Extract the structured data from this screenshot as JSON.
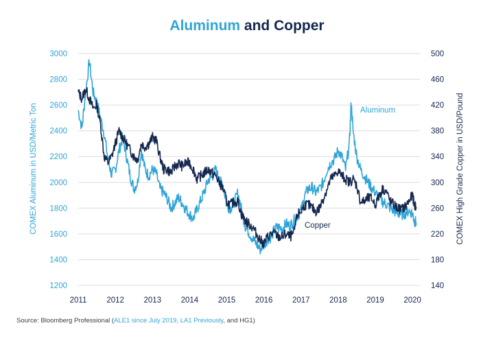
{
  "title": {
    "part1": "Aluminum",
    "part2": " and Copper"
  },
  "source": {
    "prefix": "Source: Bloomberg Professional (",
    "highlight": "ALE1 since July 2019, LA1 Previously",
    "suffix": ", and HG1)"
  },
  "colors": {
    "aluminum": "#2fa4d7",
    "copper": "#14274e",
    "grid": "#dcdcdc"
  },
  "chart_data": {
    "type": "line",
    "title": "Aluminum and Copper",
    "x_ticks": [
      "2011",
      "2012",
      "2013",
      "2014",
      "2015",
      "2016",
      "2017",
      "2018",
      "2019",
      "2020"
    ],
    "xlim": [
      2011.0,
      2020.2
    ],
    "y_left": {
      "label": "COMEX Aluminum in USD/Metric Ton",
      "lim": [
        1200,
        3000
      ],
      "ticks": [
        "3000",
        "2800",
        "2600",
        "2400",
        "2200",
        "2000",
        "1800",
        "1600",
        "1400",
        "1200"
      ]
    },
    "y_right": {
      "label": "COMEX High Grade Copper in USD/Pound",
      "lim": [
        140,
        500
      ],
      "ticks": [
        "500",
        "460",
        "420",
        "380",
        "340",
        "300",
        "260",
        "220",
        "180",
        "140"
      ]
    },
    "grid": "horizontal",
    "annotations": {
      "aluminum": "Aluminum",
      "copper": "Copper"
    },
    "series": [
      {
        "name": "Aluminum",
        "axis": "left",
        "points": [
          [
            2011.0,
            2560
          ],
          [
            2011.1,
            2420
          ],
          [
            2011.2,
            2700
          ],
          [
            2011.3,
            2940
          ],
          [
            2011.4,
            2700
          ],
          [
            2011.5,
            2620
          ],
          [
            2011.6,
            2500
          ],
          [
            2011.7,
            2380
          ],
          [
            2011.8,
            2180
          ],
          [
            2011.9,
            2060
          ],
          [
            2012.0,
            2100
          ],
          [
            2012.1,
            2250
          ],
          [
            2012.2,
            2350
          ],
          [
            2012.3,
            2200
          ],
          [
            2012.4,
            2050
          ],
          [
            2012.5,
            1950
          ],
          [
            2012.6,
            2000
          ],
          [
            2012.7,
            2250
          ],
          [
            2012.8,
            2100
          ],
          [
            2012.9,
            2050
          ],
          [
            2013.0,
            2100
          ],
          [
            2013.1,
            2070
          ],
          [
            2013.2,
            1950
          ],
          [
            2013.3,
            1920
          ],
          [
            2013.4,
            1870
          ],
          [
            2013.5,
            1800
          ],
          [
            2013.6,
            1840
          ],
          [
            2013.7,
            1880
          ],
          [
            2013.8,
            1840
          ],
          [
            2013.9,
            1790
          ],
          [
            2014.0,
            1750
          ],
          [
            2014.1,
            1720
          ],
          [
            2014.2,
            1790
          ],
          [
            2014.3,
            1860
          ],
          [
            2014.4,
            1930
          ],
          [
            2014.5,
            2020
          ],
          [
            2014.6,
            2040
          ],
          [
            2014.7,
            2100
          ],
          [
            2014.8,
            2010
          ],
          [
            2014.9,
            1980
          ],
          [
            2015.0,
            1820
          ],
          [
            2015.1,
            1800
          ],
          [
            2015.2,
            1840
          ],
          [
            2015.3,
            1920
          ],
          [
            2015.4,
            1780
          ],
          [
            2015.5,
            1660
          ],
          [
            2015.6,
            1610
          ],
          [
            2015.7,
            1560
          ],
          [
            2015.8,
            1520
          ],
          [
            2015.9,
            1480
          ],
          [
            2016.0,
            1520
          ],
          [
            2016.1,
            1560
          ],
          [
            2016.2,
            1580
          ],
          [
            2016.3,
            1640
          ],
          [
            2016.4,
            1650
          ],
          [
            2016.5,
            1640
          ],
          [
            2016.6,
            1680
          ],
          [
            2016.7,
            1660
          ],
          [
            2016.8,
            1700
          ],
          [
            2016.9,
            1740
          ],
          [
            2017.0,
            1780
          ],
          [
            2017.1,
            1900
          ],
          [
            2017.2,
            1950
          ],
          [
            2017.3,
            1960
          ],
          [
            2017.4,
            1920
          ],
          [
            2017.5,
            1950
          ],
          [
            2017.6,
            2000
          ],
          [
            2017.7,
            2100
          ],
          [
            2017.8,
            2150
          ],
          [
            2017.9,
            2180
          ],
          [
            2018.0,
            2250
          ],
          [
            2018.1,
            2200
          ],
          [
            2018.2,
            2100
          ],
          [
            2018.3,
            2300
          ],
          [
            2018.35,
            2620
          ],
          [
            2018.4,
            2400
          ],
          [
            2018.5,
            2200
          ],
          [
            2018.6,
            2100
          ],
          [
            2018.7,
            2050
          ],
          [
            2018.8,
            2000
          ],
          [
            2018.9,
            1960
          ],
          [
            2019.0,
            1920
          ],
          [
            2019.1,
            1880
          ],
          [
            2019.2,
            1850
          ],
          [
            2019.3,
            1830
          ],
          [
            2019.4,
            1800
          ],
          [
            2019.5,
            1780
          ],
          [
            2019.6,
            1760
          ],
          [
            2019.7,
            1750
          ],
          [
            2019.8,
            1760
          ],
          [
            2019.9,
            1780
          ],
          [
            2020.0,
            1760
          ],
          [
            2020.05,
            1700
          ],
          [
            2020.1,
            1690
          ]
        ]
      },
      {
        "name": "Copper",
        "axis": "right",
        "points": [
          [
            2011.0,
            440
          ],
          [
            2011.1,
            430
          ],
          [
            2011.2,
            445
          ],
          [
            2011.3,
            430
          ],
          [
            2011.4,
            415
          ],
          [
            2011.5,
            420
          ],
          [
            2011.6,
            390
          ],
          [
            2011.7,
            340
          ],
          [
            2011.8,
            330
          ],
          [
            2011.9,
            340
          ],
          [
            2012.0,
            360
          ],
          [
            2012.1,
            380
          ],
          [
            2012.2,
            370
          ],
          [
            2012.3,
            360
          ],
          [
            2012.4,
            350
          ],
          [
            2012.5,
            340
          ],
          [
            2012.6,
            335
          ],
          [
            2012.7,
            360
          ],
          [
            2012.8,
            355
          ],
          [
            2012.9,
            360
          ],
          [
            2013.0,
            370
          ],
          [
            2013.1,
            365
          ],
          [
            2013.2,
            340
          ],
          [
            2013.3,
            320
          ],
          [
            2013.4,
            320
          ],
          [
            2013.5,
            315
          ],
          [
            2013.6,
            325
          ],
          [
            2013.7,
            330
          ],
          [
            2013.8,
            325
          ],
          [
            2013.9,
            330
          ],
          [
            2014.0,
            330
          ],
          [
            2014.1,
            320
          ],
          [
            2014.2,
            305
          ],
          [
            2014.3,
            310
          ],
          [
            2014.4,
            315
          ],
          [
            2014.5,
            320
          ],
          [
            2014.6,
            315
          ],
          [
            2014.7,
            310
          ],
          [
            2014.8,
            300
          ],
          [
            2014.9,
            290
          ],
          [
            2015.0,
            270
          ],
          [
            2015.1,
            265
          ],
          [
            2015.2,
            270
          ],
          [
            2015.3,
            270
          ],
          [
            2015.4,
            250
          ],
          [
            2015.5,
            240
          ],
          [
            2015.6,
            235
          ],
          [
            2015.7,
            230
          ],
          [
            2015.8,
            220
          ],
          [
            2015.9,
            210
          ],
          [
            2016.0,
            205
          ],
          [
            2016.1,
            215
          ],
          [
            2016.2,
            220
          ],
          [
            2016.3,
            220
          ],
          [
            2016.4,
            215
          ],
          [
            2016.5,
            215
          ],
          [
            2016.6,
            220
          ],
          [
            2016.7,
            215
          ],
          [
            2016.8,
            220
          ],
          [
            2016.9,
            250
          ],
          [
            2017.0,
            255
          ],
          [
            2017.1,
            265
          ],
          [
            2017.2,
            265
          ],
          [
            2017.3,
            260
          ],
          [
            2017.4,
            255
          ],
          [
            2017.5,
            260
          ],
          [
            2017.6,
            275
          ],
          [
            2017.7,
            290
          ],
          [
            2017.8,
            305
          ],
          [
            2017.9,
            310
          ],
          [
            2018.0,
            318
          ],
          [
            2018.1,
            310
          ],
          [
            2018.2,
            305
          ],
          [
            2018.3,
            300
          ],
          [
            2018.4,
            305
          ],
          [
            2018.5,
            295
          ],
          [
            2018.6,
            270
          ],
          [
            2018.7,
            270
          ],
          [
            2018.8,
            275
          ],
          [
            2018.9,
            275
          ],
          [
            2019.0,
            265
          ],
          [
            2019.1,
            280
          ],
          [
            2019.2,
            290
          ],
          [
            2019.3,
            285
          ],
          [
            2019.4,
            270
          ],
          [
            2019.5,
            265
          ],
          [
            2019.6,
            260
          ],
          [
            2019.7,
            258
          ],
          [
            2019.8,
            262
          ],
          [
            2019.9,
            270
          ],
          [
            2020.0,
            280
          ],
          [
            2020.05,
            265
          ],
          [
            2020.1,
            262
          ]
        ]
      }
    ]
  }
}
